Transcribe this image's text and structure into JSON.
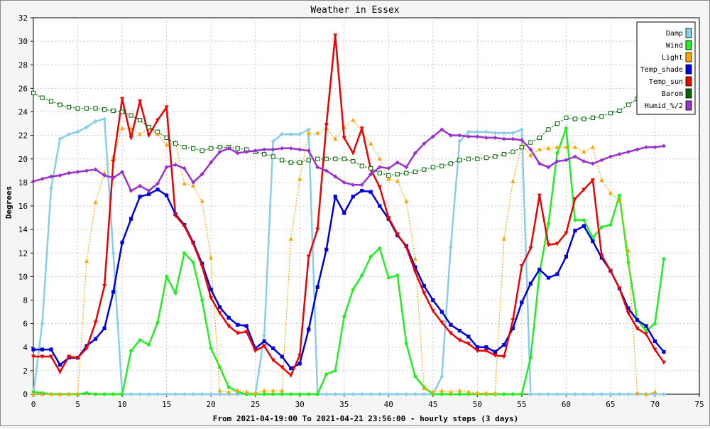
{
  "chart_data": {
    "type": "line",
    "title": "Weather in Essex",
    "xlabel": "From 2021-04-19:00 To 2021-04-21 23:56:00 - hourly steps (3 days)",
    "ylabel": "Degrees",
    "xlim": [
      0,
      75
    ],
    "ylim": [
      0,
      32
    ],
    "xticks": [
      0,
      5,
      10,
      15,
      20,
      25,
      30,
      35,
      40,
      45,
      50,
      55,
      60,
      65,
      70,
      75
    ],
    "yticks": [
      0,
      2,
      4,
      6,
      8,
      10,
      12,
      14,
      16,
      18,
      20,
      22,
      24,
      26,
      28,
      30,
      32
    ],
    "grid": true,
    "legend_position": "top-right",
    "series": [
      {
        "name": "Damp",
        "color": "#87ceeb",
        "style": "solid",
        "marker": "diamond",
        "values": [
          0,
          6,
          17.5,
          21.7,
          22.1,
          22.3,
          22.7,
          23.2,
          23.4,
          12,
          0,
          0,
          0,
          0,
          0,
          0,
          0,
          0,
          0,
          0,
          0,
          0,
          0,
          0,
          0,
          0,
          5,
          21.5,
          22.1,
          22.1,
          22.1,
          22.5,
          0,
          0,
          0,
          0,
          0,
          0,
          0,
          0,
          0,
          0,
          0,
          0,
          0,
          0,
          1.5,
          12.5,
          21.5,
          22.3,
          22.3,
          22.3,
          22.2,
          22.2,
          22.2,
          22.5,
          0,
          0,
          0,
          0,
          0,
          0,
          0,
          0,
          0,
          0,
          0,
          0,
          0,
          0,
          0,
          0
        ]
      },
      {
        "name": "Wind",
        "color": "#22ee22",
        "style": "solid",
        "marker": "circle",
        "values": [
          0.2,
          0.1,
          0,
          0,
          0,
          0,
          0.1,
          0,
          0,
          0,
          0,
          3.7,
          4.6,
          4.2,
          6.1,
          10,
          8.6,
          12,
          11.2,
          8,
          3.9,
          2.3,
          0.6,
          0.2,
          0,
          0,
          0,
          0,
          0,
          0,
          0,
          0,
          0,
          1.7,
          2,
          6.6,
          8.9,
          10.1,
          11.7,
          12.4,
          9.9,
          10.1,
          4.3,
          1.5,
          0.6,
          0,
          0,
          0,
          0,
          0,
          0,
          0,
          0,
          0,
          0,
          0,
          3.1,
          10.3,
          14.5,
          20.5,
          22.6,
          14.8,
          14.8,
          13.3,
          14.2,
          14.4,
          16.9,
          11.2,
          6.3,
          5.4,
          6,
          11.5
        ]
      },
      {
        "name": "Light",
        "color": "#ffa500",
        "style": "dotted",
        "marker": "triangle-up",
        "values": [
          0,
          0,
          0,
          0,
          0,
          0,
          11.3,
          16.3,
          18.8,
          20.2,
          22.6,
          22.6,
          22.1,
          22.6,
          22.1,
          21.2,
          21.4,
          17.9,
          17.7,
          16.4,
          11.6,
          0.3,
          0.2,
          0.3,
          0.2,
          0.1,
          0.3,
          0.3,
          0.3,
          13.2,
          18.3,
          22.2,
          22.2,
          22.6,
          21.7,
          22.7,
          23.3,
          22.3,
          21.3,
          20,
          18.3,
          18.1,
          16.4,
          11.5,
          0.5,
          0.2,
          0.3,
          0.2,
          0.3,
          0.2,
          0.1,
          0.1,
          0.1,
          13.2,
          18.1,
          21.2,
          20.3,
          20.8,
          20.9,
          21,
          21,
          21,
          20.6,
          21,
          18.2,
          17.1,
          16.4,
          12.2,
          0.1,
          0,
          0.2
        ]
      },
      {
        "name": "Temp_shade",
        "color": "#0000dd",
        "style": "solid",
        "marker": "square",
        "values": [
          3.8,
          3.8,
          3.8,
          2.5,
          3.1,
          3.1,
          4.1,
          4.7,
          5.6,
          8.7,
          12.9,
          14.9,
          16.8,
          17,
          17.4,
          16.9,
          15.3,
          14.4,
          12.9,
          11.1,
          8.9,
          7.4,
          6.5,
          5.9,
          5.8,
          3.9,
          4.5,
          3.9,
          3.2,
          2.2,
          2.6,
          5.5,
          9.1,
          12.3,
          16.8,
          15.4,
          16.8,
          17.3,
          17.2,
          16,
          14.9,
          13.5,
          12.6,
          10.8,
          9.2,
          8,
          7,
          5.9,
          5.4,
          4.9,
          4,
          4,
          3.6,
          4.2,
          5.6,
          7.8,
          9.4,
          10.6,
          9.9,
          10.2,
          11.7,
          13.9,
          14.3,
          13,
          11.6,
          10.5,
          9,
          7.3,
          6.3,
          5.8,
          4.5,
          3.6
        ]
      },
      {
        "name": "Temp_sun",
        "color": "#ee0000",
        "style": "solid",
        "marker": "triangle-down",
        "values": [
          3.2,
          3.2,
          3.2,
          1.9,
          3.2,
          3.1,
          3.9,
          6.1,
          9.2,
          19.8,
          25.1,
          21.8,
          24.9,
          22,
          23.3,
          24.4,
          15.2,
          14.3,
          12.8,
          10.9,
          8.2,
          6.9,
          5.8,
          5.2,
          5.3,
          3.7,
          4.1,
          2.9,
          2.3,
          1.6,
          3.3,
          11.7,
          14,
          22.9,
          30.5,
          21.8,
          20.5,
          22.6,
          19.1,
          17.6,
          15,
          13.6,
          12.5,
          10.4,
          8.6,
          7.1,
          6.1,
          5.2,
          4.6,
          4.3,
          3.7,
          3.7,
          3.3,
          3.2,
          6.3,
          10.9,
          12.4,
          16.9,
          12.7,
          12.8,
          13.7,
          16.6,
          17.4,
          18.2,
          11.8,
          10.5,
          9,
          6.9,
          5.6,
          5.1,
          3.8,
          2.7
        ]
      },
      {
        "name": "Barom",
        "color": "#006400",
        "style": "dotted",
        "marker": "square-open",
        "values": [
          25.6,
          25.2,
          24.9,
          24.6,
          24.4,
          24.3,
          24.3,
          24.3,
          24.2,
          24.1,
          24,
          23.7,
          23.3,
          22.7,
          22.3,
          21.8,
          21.3,
          21,
          20.9,
          20.7,
          20.9,
          21,
          21,
          20.9,
          20.8,
          20.6,
          20.4,
          20.2,
          19.9,
          19.7,
          19.7,
          19.9,
          20,
          20,
          20,
          20,
          19.8,
          19.4,
          19.2,
          18.8,
          18.6,
          18.7,
          18.8,
          18.9,
          19.1,
          19.3,
          19.4,
          19.6,
          19.9,
          20,
          20,
          20.1,
          20.2,
          20.4,
          20.6,
          21,
          21.4,
          21.8,
          22.5,
          23,
          23.5,
          23.4,
          23.4,
          23.5,
          23.6,
          23.9,
          24.1,
          24.6,
          25.1
        ]
      },
      {
        "name": "Humid_%/2",
        "color": "#9932cc",
        "style": "solid",
        "marker": "diamond",
        "values": [
          18.1,
          18.3,
          18.5,
          18.6,
          18.8,
          18.9,
          19,
          19.1,
          18.6,
          18.4,
          18.9,
          17.3,
          17.7,
          17.3,
          17.9,
          19.3,
          19.5,
          19.2,
          18,
          18.7,
          19.7,
          20.6,
          20.9,
          20.5,
          20.6,
          20.7,
          20.8,
          20.8,
          20.9,
          20.9,
          20.8,
          20.7,
          19.3,
          19,
          18.5,
          18,
          17.8,
          17.8,
          18.7,
          19.3,
          19.2,
          19.7,
          19.3,
          20.5,
          21.3,
          21.9,
          22.5,
          22,
          22,
          21.9,
          21.9,
          21.8,
          21.8,
          21.7,
          21.7,
          21.6,
          20.8,
          19.6,
          19.3,
          19.8,
          19.9,
          20.2,
          19.8,
          19.6,
          19.9,
          20.2,
          20.4,
          20.6,
          20.8,
          21,
          21,
          21.1
        ]
      }
    ]
  }
}
